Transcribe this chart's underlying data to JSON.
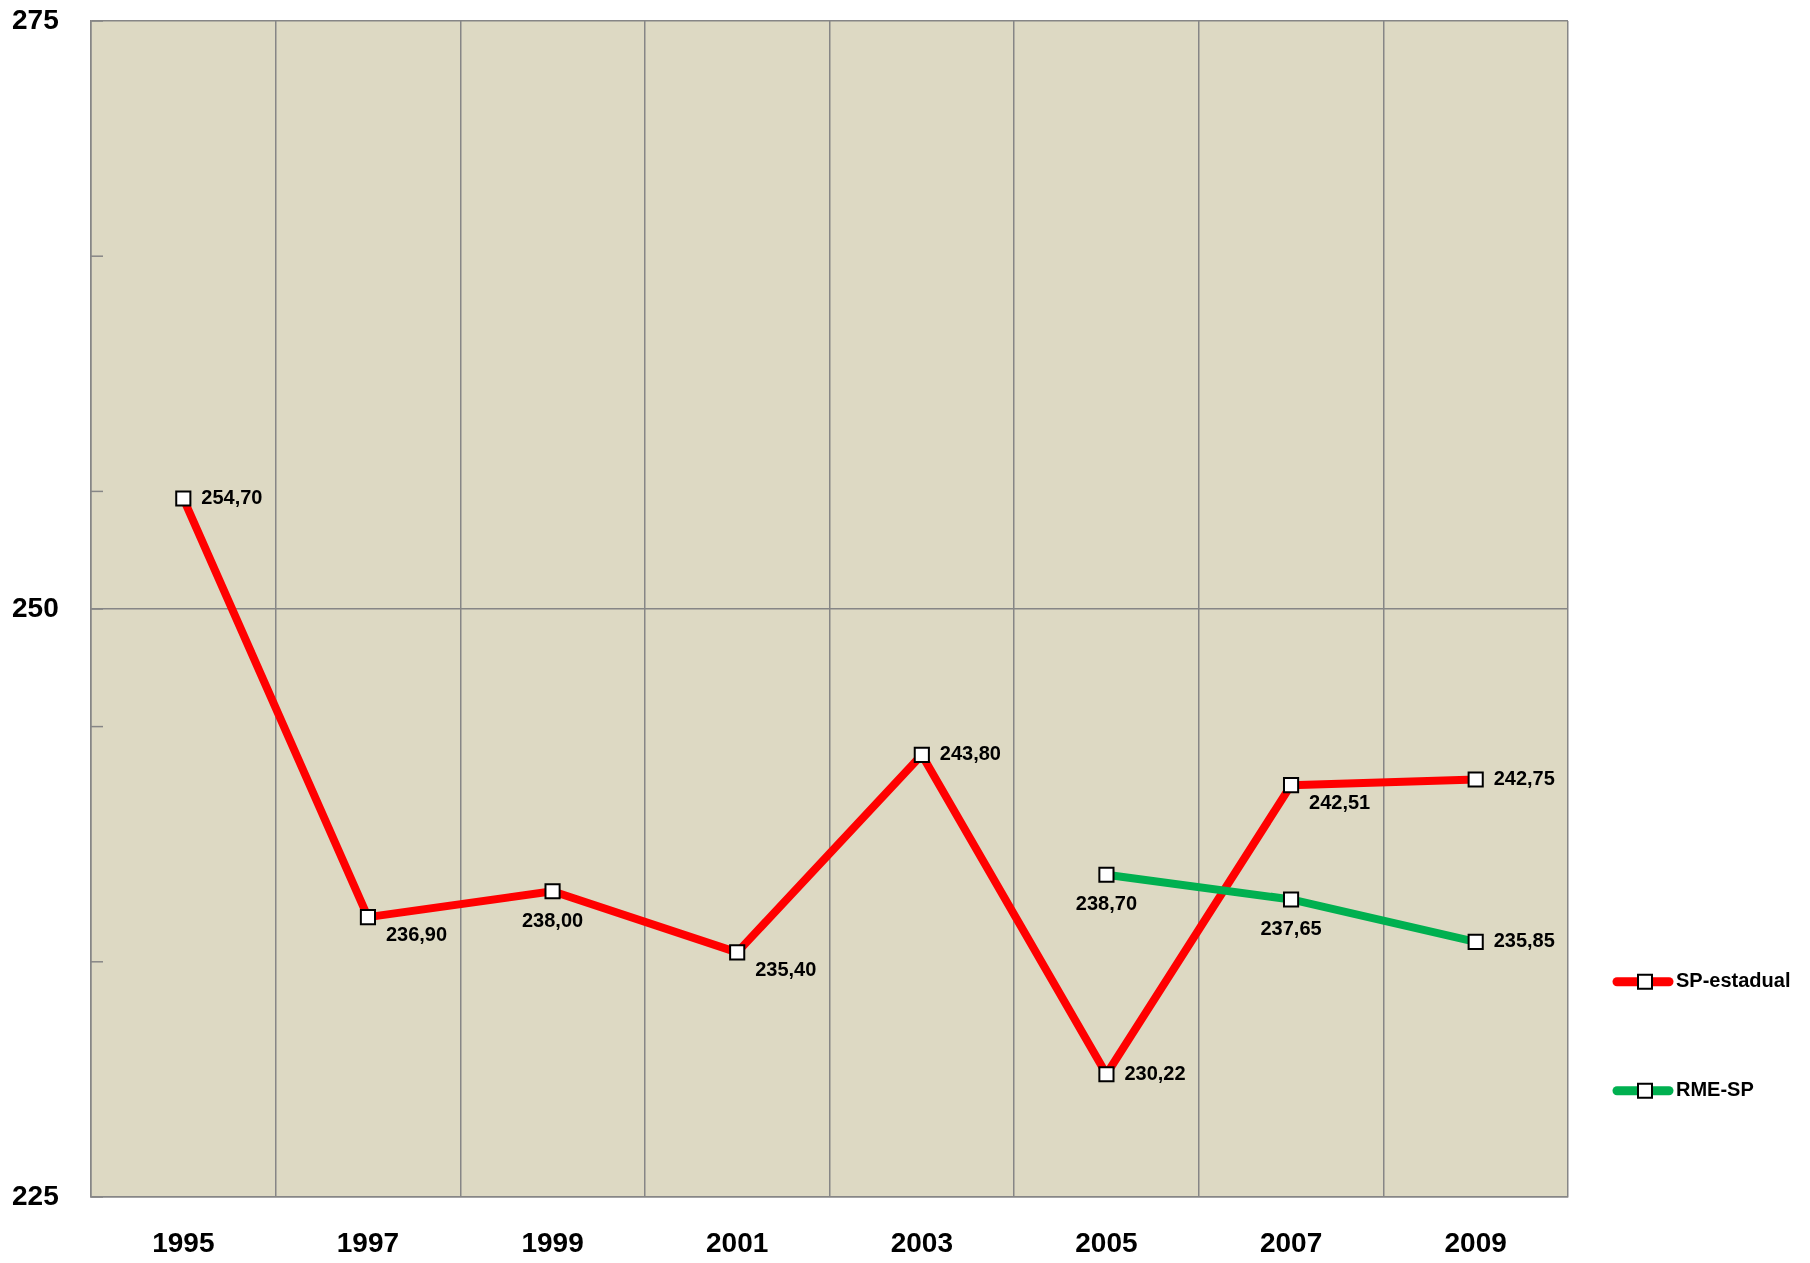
{
  "chart_data": {
    "type": "line",
    "categories": [
      "1995",
      "1997",
      "1999",
      "2001",
      "2003",
      "2005",
      "2007",
      "2009"
    ],
    "series": [
      {
        "name": "SP-estadual",
        "color": "#ff0000",
        "values": [
          254.7,
          236.9,
          238.0,
          235.4,
          243.8,
          230.22,
          242.51,
          242.75
        ],
        "value_labels": [
          "254,70",
          "236,90",
          "238,00",
          "235,40",
          "243,80",
          "230,22",
          "242,51",
          "242,75"
        ]
      },
      {
        "name": "RME-SP",
        "color": "#00b050",
        "values": [
          null,
          null,
          null,
          null,
          null,
          238.7,
          237.65,
          235.85
        ],
        "value_labels": [
          null,
          null,
          null,
          null,
          null,
          "238,70",
          "237,65",
          "235,85"
        ]
      }
    ],
    "ylim": [
      225,
      275
    ],
    "yticks": [
      225,
      {
        "value": 235,
        "label": null
      },
      {
        "value": 245,
        "label": null
      },
      250,
      {
        "value": 255,
        "label": null
      },
      {
        "value": 265,
        "label": null
      },
      275
    ],
    "grid": true,
    "legend": "right",
    "marker": "square",
    "line_style": "solid"
  }
}
